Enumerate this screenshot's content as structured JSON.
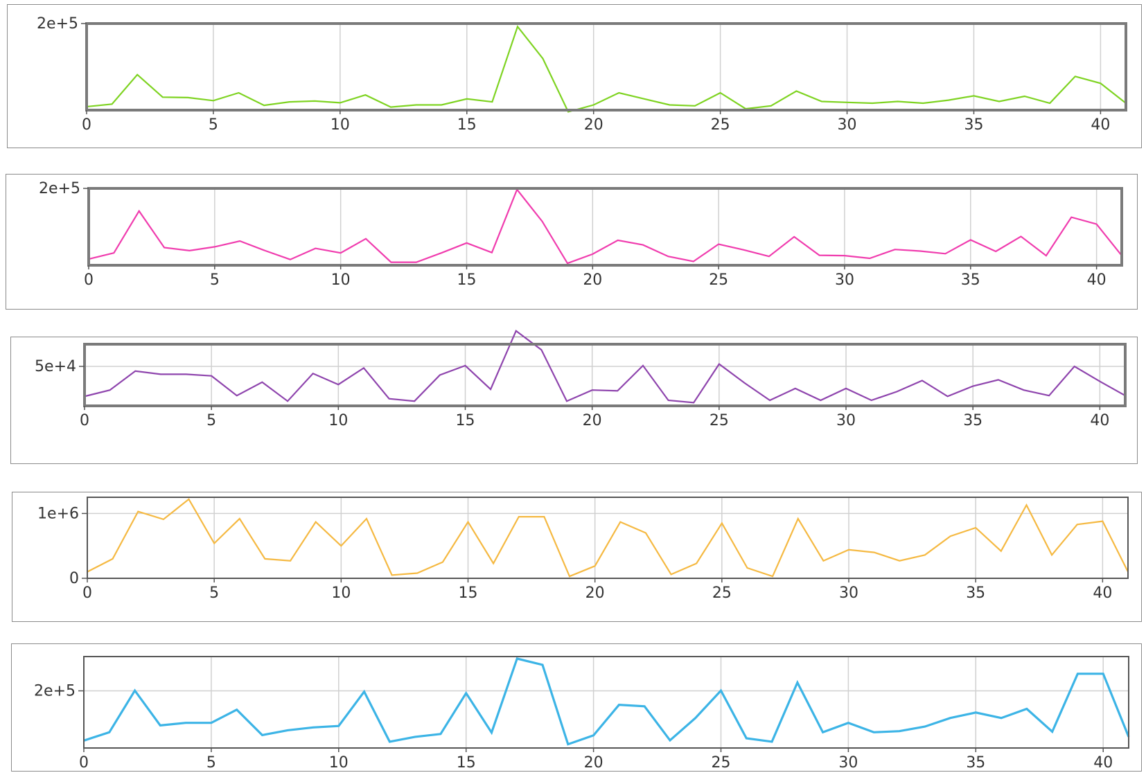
{
  "chart_data": [
    {
      "type": "line",
      "color": "#7ed321",
      "stroke": "thin",
      "x": [
        0,
        1,
        2,
        3,
        4,
        5,
        6,
        7,
        8,
        9,
        10,
        11,
        12,
        13,
        14,
        15,
        16,
        17,
        18,
        19,
        20,
        21,
        22,
        23,
        24,
        25,
        26,
        27,
        28,
        29,
        30,
        31,
        32,
        33,
        34,
        35,
        36,
        37,
        38,
        39,
        40,
        41
      ],
      "values": [
        8000,
        14000,
        82000,
        30000,
        29000,
        22000,
        40000,
        11000,
        19000,
        21000,
        17000,
        35000,
        7000,
        12000,
        12000,
        26000,
        19000,
        193000,
        119000,
        -4000,
        12000,
        40000,
        26000,
        12000,
        10000,
        40000,
        3000,
        10000,
        44000,
        20000,
        18000,
        16000,
        20000,
        16000,
        23000,
        33000,
        20000,
        32000,
        16000,
        78000,
        62000,
        16000
      ],
      "ylim": [
        0,
        200000
      ],
      "xlim": [
        0,
        41
      ],
      "ytick_labels": [
        "2e+5"
      ],
      "ytick_values": [
        200000
      ],
      "xtick_labels": [
        "0",
        "5",
        "10",
        "15",
        "20",
        "25",
        "30",
        "35",
        "40"
      ],
      "grid": "vertical",
      "panel_frame": "thick"
    },
    {
      "type": "line",
      "color": "#f03cae",
      "stroke": "thin",
      "x": [
        0,
        1,
        2,
        3,
        4,
        5,
        6,
        7,
        8,
        9,
        10,
        11,
        12,
        13,
        14,
        15,
        16,
        17,
        18,
        19,
        20,
        21,
        22,
        23,
        24,
        25,
        26,
        27,
        28,
        29,
        30,
        31,
        32,
        33,
        34,
        35,
        36,
        37,
        38,
        39,
        40,
        41
      ],
      "values": [
        16000,
        32000,
        141000,
        46000,
        38000,
        48000,
        63000,
        38000,
        15000,
        44000,
        32000,
        69000,
        8000,
        8000,
        32000,
        58000,
        33000,
        197000,
        114000,
        5000,
        29000,
        65000,
        53000,
        23000,
        10000,
        55000,
        40000,
        23000,
        74000,
        26000,
        25000,
        18000,
        41000,
        37000,
        30000,
        66000,
        36000,
        75000,
        25000,
        125000,
        107000,
        25000
      ],
      "ylim": [
        0,
        200000
      ],
      "xlim": [
        0,
        41
      ],
      "ytick_labels": [
        "2e+5"
      ],
      "ytick_values": [
        200000
      ],
      "xtick_labels": [
        "0",
        "5",
        "10",
        "15",
        "20",
        "25",
        "30",
        "35",
        "40"
      ],
      "grid": "vertical",
      "panel_frame": "thick"
    },
    {
      "type": "line",
      "color": "#8e44ad",
      "stroke": "thin",
      "x": [
        0,
        1,
        2,
        3,
        4,
        5,
        6,
        7,
        8,
        9,
        10,
        11,
        12,
        13,
        14,
        15,
        16,
        17,
        18,
        19,
        20,
        21,
        22,
        23,
        24,
        25,
        26,
        27,
        28,
        29,
        30,
        31,
        32,
        33,
        34,
        35,
        36,
        37,
        38,
        39,
        40,
        41
      ],
      "values": [
        12000,
        20000,
        44000,
        40000,
        40000,
        38000,
        13000,
        30000,
        6000,
        41000,
        27000,
        48000,
        9000,
        6000,
        39000,
        51000,
        21000,
        95000,
        71000,
        6000,
        20000,
        19000,
        51000,
        7000,
        4000,
        53000,
        29000,
        7000,
        22000,
        7000,
        22000,
        7000,
        18000,
        32000,
        12000,
        25000,
        33000,
        20000,
        13000,
        50000,
        31000,
        13000
      ],
      "ylim": [
        0,
        100000
      ],
      "xlim": [
        0,
        41
      ],
      "ytick_labels": [
        "5e+4"
      ],
      "ytick_values": [
        50000
      ],
      "xtick_labels": [
        "0",
        "5",
        "10",
        "15",
        "20",
        "25",
        "30",
        "35",
        "40"
      ],
      "grid": "both",
      "panel_frame": "thick"
    },
    {
      "type": "line",
      "color": "#f5b942",
      "stroke": "thin",
      "x": [
        0,
        1,
        2,
        3,
        4,
        5,
        6,
        7,
        8,
        9,
        10,
        11,
        12,
        13,
        14,
        15,
        16,
        17,
        18,
        19,
        20,
        21,
        22,
        23,
        24,
        25,
        26,
        27,
        28,
        29,
        30,
        31,
        32,
        33,
        34,
        35,
        36,
        37,
        38,
        39,
        40,
        41
      ],
      "values": [
        100000,
        300000,
        1030000,
        910000,
        1220000,
        540000,
        920000,
        300000,
        270000,
        870000,
        500000,
        920000,
        50000,
        80000,
        250000,
        870000,
        230000,
        950000,
        950000,
        30000,
        190000,
        870000,
        700000,
        60000,
        230000,
        850000,
        160000,
        30000,
        920000,
        270000,
        440000,
        400000,
        270000,
        360000,
        650000,
        780000,
        420000,
        1130000,
        360000,
        830000,
        880000,
        100000
      ],
      "ylim": [
        0,
        1250000
      ],
      "xlim": [
        0,
        41
      ],
      "ytick_labels": [
        "0",
        "1e+6"
      ],
      "ytick_values": [
        0,
        1000000
      ],
      "xtick_labels": [
        "0",
        "5",
        "10",
        "15",
        "20",
        "25",
        "30",
        "35",
        "40"
      ],
      "grid": "both",
      "panel_frame": "normal"
    },
    {
      "type": "line",
      "color": "#3cb4e6",
      "stroke": "thick",
      "x": [
        0,
        1,
        2,
        3,
        4,
        5,
        6,
        7,
        8,
        9,
        10,
        11,
        12,
        13,
        14,
        15,
        16,
        17,
        18,
        19,
        20,
        21,
        22,
        23,
        24,
        25,
        26,
        27,
        28,
        29,
        30,
        31,
        32,
        33,
        34,
        35,
        36,
        37,
        38,
        39,
        40,
        41
      ],
      "values": [
        26000,
        55000,
        201000,
        79000,
        88000,
        88000,
        134000,
        45000,
        62000,
        72000,
        77000,
        197000,
        22000,
        39000,
        49000,
        192000,
        54000,
        313000,
        291000,
        13000,
        44000,
        151000,
        146000,
        27000,
        105000,
        201000,
        34000,
        22000,
        229000,
        55000,
        88000,
        55000,
        59000,
        75000,
        105000,
        124000,
        105000,
        137000,
        57000,
        260000,
        260000,
        39000
      ],
      "ylim": [
        0,
        320000
      ],
      "xlim": [
        0,
        41
      ],
      "ytick_labels": [
        "2e+5"
      ],
      "ytick_values": [
        200000
      ],
      "xtick_labels": [
        "0",
        "5",
        "10",
        "15",
        "20",
        "25",
        "30",
        "35",
        "40"
      ],
      "grid": "both",
      "panel_frame": "normal"
    }
  ]
}
